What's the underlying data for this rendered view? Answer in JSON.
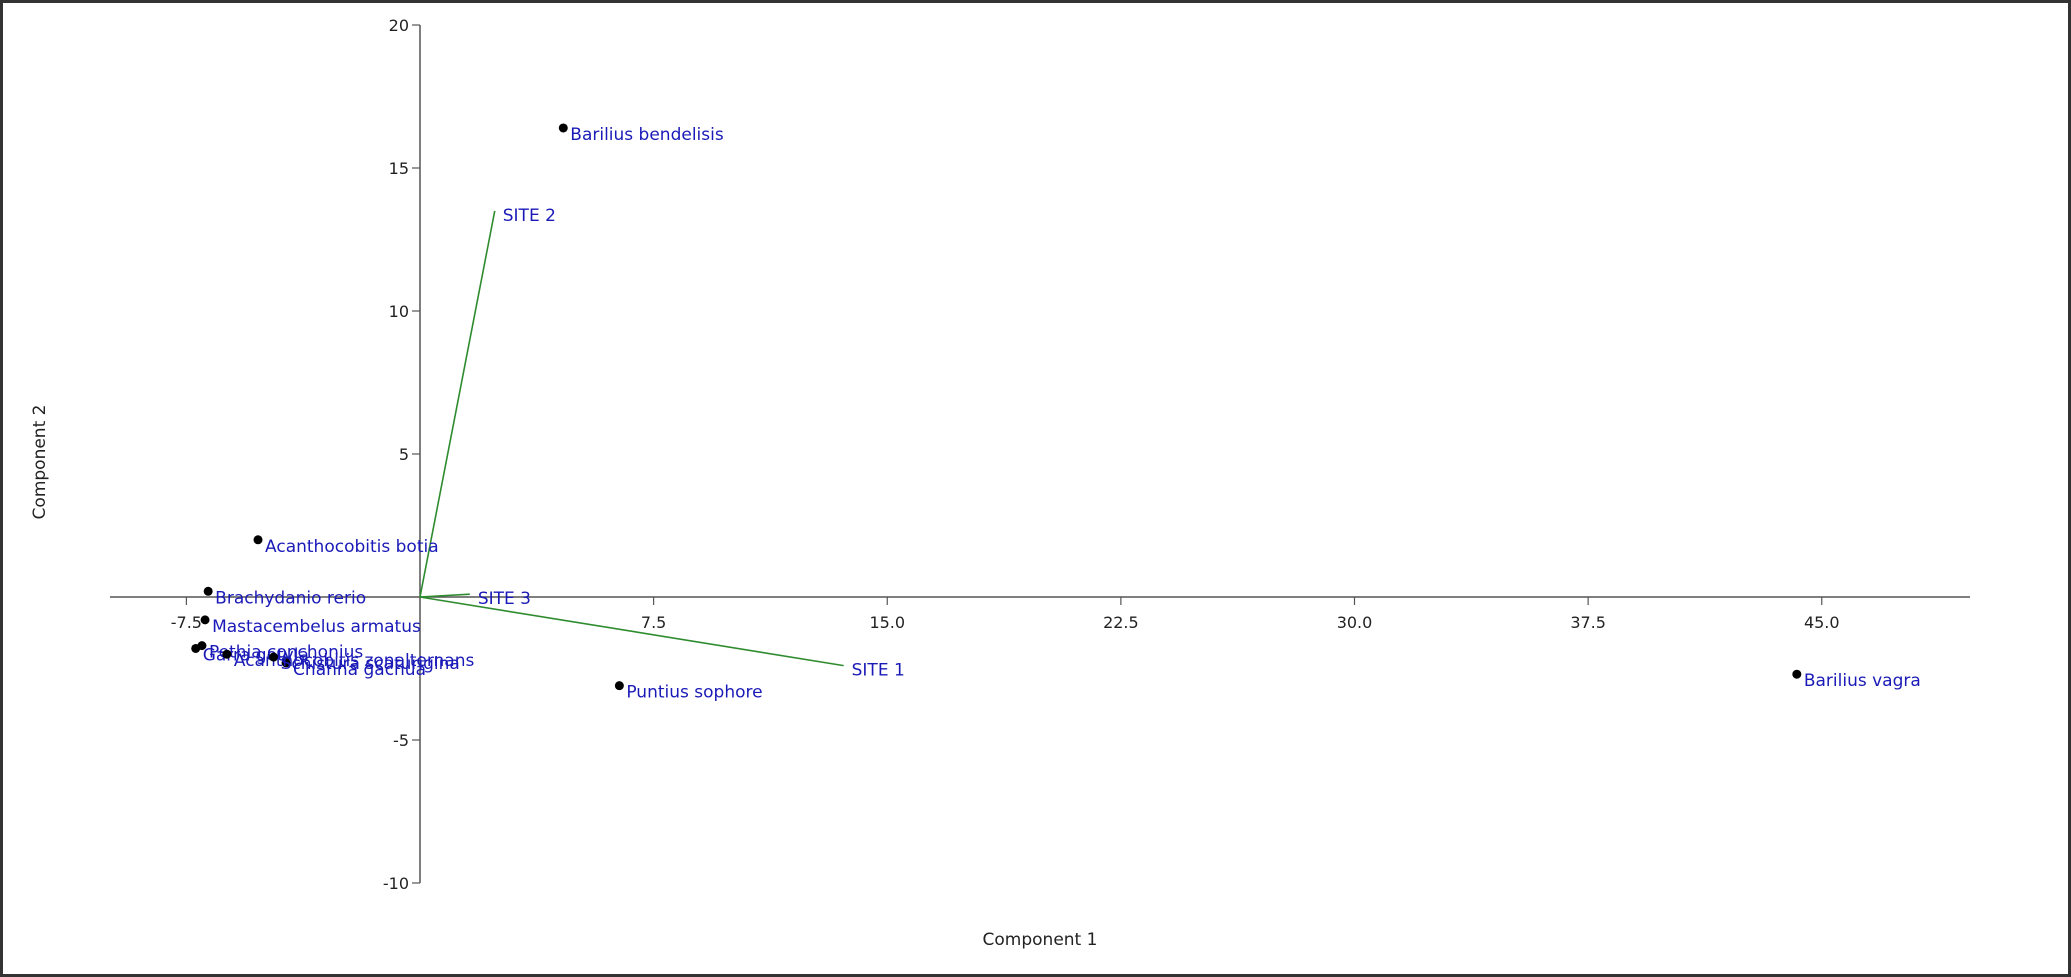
{
  "chart_data": {
    "type": "scatter",
    "title": "",
    "xlabel": "Component 1",
    "ylabel": "Component 2",
    "xlim": [
      -11,
      50
    ],
    "ylim": [
      -10,
      20
    ],
    "x_ticks": [
      {
        "value": -7.5,
        "label": "-7.5"
      },
      {
        "value": 7.5,
        "label": "7.5"
      },
      {
        "value": 15,
        "label": "15.0"
      },
      {
        "value": 22.5,
        "label": "22.5"
      },
      {
        "value": 30,
        "label": "30.0"
      },
      {
        "value": 37.5,
        "label": "37.5"
      },
      {
        "value": 45,
        "label": "45.0"
      }
    ],
    "y_ticks": [
      {
        "value": 20,
        "label": "20"
      },
      {
        "value": 15,
        "label": "15"
      },
      {
        "value": 10,
        "label": "10"
      },
      {
        "value": 5,
        "label": "5"
      },
      {
        "value": -5,
        "label": "-5"
      },
      {
        "value": -10,
        "label": "-10"
      }
    ],
    "points": [
      {
        "label": "Barilius bendelisis",
        "x": 4.6,
        "y": 16.4
      },
      {
        "label": "Acanthocobitis botia",
        "x": -5.2,
        "y": 2.0
      },
      {
        "label": "Brachydanio rerio",
        "x": -6.8,
        "y": 0.2
      },
      {
        "label": "Mastacembelus armatus",
        "x": -6.9,
        "y": -0.8
      },
      {
        "label": "Pethia conchonius",
        "x": -7.0,
        "y": -1.7
      },
      {
        "label": "Garra gotyla",
        "x": -7.2,
        "y": -1.8
      },
      {
        "label": "Channa gachua",
        "x": -4.3,
        "y": -2.3
      },
      {
        "label": "Acanthocobitis zonalternans",
        "x": -6.2,
        "y": -2.0
      },
      {
        "label": "Schistura scaturigina",
        "x": -4.7,
        "y": -2.1
      },
      {
        "label": "Puntius sophore",
        "x": 6.4,
        "y": -3.1
      },
      {
        "label": "Barilius vagra",
        "x": 44.2,
        "y": -2.7
      }
    ],
    "vectors": [
      {
        "label": "SITE  1",
        "x": 13.6,
        "y": -2.4
      },
      {
        "label": "SITE  2",
        "x": 2.4,
        "y": 13.5
      },
      {
        "label": "SITE 3",
        "x": 1.6,
        "y": 0.1
      }
    ],
    "colors": {
      "points": "#000000",
      "labels": "#1a1ab8",
      "vectors": "#2e8b2e",
      "axes": "#555555"
    }
  }
}
